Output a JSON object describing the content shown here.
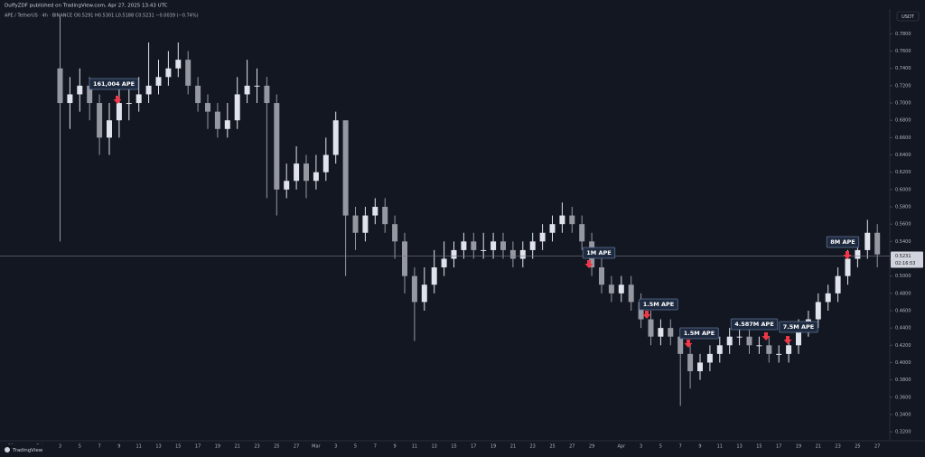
{
  "chart_data": {
    "type": "candlestick",
    "title": "DuffyZDF published on TradingView.com, Apr 27, 2025 13:43 UTC",
    "subtitle": "APE / TetherUS · 4h · BINANCE",
    "ohlc_text": "O0.5291 H0.5301 L0.5188 C0.5231 −0.0039 (−0.74%)",
    "currency": "USDT",
    "last_price": 0.5231,
    "countdown": "02:16:53",
    "watermark": "TradingView",
    "up_color": "#e0e3eb",
    "down_color": "#9598a1",
    "grid": false,
    "categories": [
      "29",
      null,
      null,
      "Feb",
      null,
      "3",
      null,
      "5",
      null,
      "7",
      null,
      "9",
      null,
      "11",
      null,
      "13",
      null,
      "15",
      null,
      "17",
      null,
      "19",
      null,
      "21",
      null,
      "23",
      null,
      "25",
      null,
      "27",
      null,
      "Mar",
      null,
      "3",
      null,
      "5",
      null,
      "7",
      null,
      "9",
      null,
      "11",
      null,
      "13",
      null,
      "15",
      null,
      "17",
      null,
      "19",
      null,
      "21",
      null,
      "23",
      null,
      "25",
      null,
      "27",
      null,
      "29",
      null,
      null,
      "Apr",
      null,
      "3",
      null,
      "5",
      null,
      "7",
      null,
      "9",
      null,
      "11",
      null,
      "13",
      null,
      "15",
      null,
      "17",
      null,
      "19",
      null,
      "21",
      null,
      "23",
      null,
      "25",
      null,
      "27"
    ],
    "open": [
      null,
      null,
      null,
      null,
      null,
      0.74,
      0.7,
      0.71,
      0.72,
      0.7,
      0.66,
      0.68,
      0.7,
      0.7,
      0.71,
      0.72,
      0.73,
      0.74,
      0.75,
      0.72,
      0.7,
      0.69,
      0.67,
      0.68,
      0.71,
      0.72,
      0.72,
      0.7,
      0.6,
      0.61,
      0.63,
      0.61,
      0.62,
      0.64,
      0.68,
      0.57,
      0.55,
      0.57,
      0.58,
      0.56,
      0.54,
      0.5,
      0.47,
      0.49,
      0.51,
      0.52,
      0.53,
      0.54,
      0.53,
      0.53,
      0.54,
      0.53,
      0.52,
      0.53,
      0.54,
      0.55,
      0.56,
      0.57,
      0.56,
      0.54,
      0.51,
      0.49,
      0.48,
      0.49,
      0.47,
      0.45,
      0.43,
      0.44,
      0.43,
      0.41,
      0.39,
      0.4,
      0.41,
      0.42,
      0.43,
      0.43,
      0.42,
      0.42,
      0.41,
      0.41,
      0.42,
      0.44,
      0.45,
      0.47,
      0.48,
      0.5,
      0.52,
      0.53,
      0.55
    ],
    "high": [
      null,
      null,
      null,
      null,
      null,
      0.8,
      0.73,
      0.74,
      0.73,
      0.71,
      0.7,
      0.72,
      0.72,
      0.73,
      0.77,
      0.75,
      0.76,
      0.77,
      0.76,
      0.73,
      0.71,
      0.7,
      0.7,
      0.73,
      0.75,
      0.74,
      0.73,
      0.71,
      0.63,
      0.65,
      0.64,
      0.64,
      0.66,
      0.69,
      0.68,
      0.58,
      0.58,
      0.59,
      0.59,
      0.57,
      0.55,
      0.51,
      0.51,
      0.53,
      0.54,
      0.54,
      0.55,
      0.55,
      0.55,
      0.55,
      0.55,
      0.54,
      0.54,
      0.55,
      0.56,
      0.57,
      0.585,
      0.58,
      0.57,
      0.55,
      0.52,
      0.5,
      0.5,
      0.5,
      0.48,
      0.46,
      0.45,
      0.45,
      0.44,
      0.42,
      0.41,
      0.42,
      0.43,
      0.44,
      0.44,
      0.44,
      0.43,
      0.43,
      0.42,
      0.43,
      0.45,
      0.46,
      0.48,
      0.49,
      0.51,
      0.53,
      0.54,
      0.565,
      0.56
    ],
    "low": [
      null,
      null,
      null,
      null,
      null,
      0.54,
      0.67,
      0.69,
      0.68,
      0.64,
      0.64,
      0.66,
      0.68,
      0.69,
      0.7,
      0.71,
      0.72,
      0.73,
      0.71,
      0.69,
      0.67,
      0.66,
      0.66,
      0.67,
      0.7,
      0.7,
      0.59,
      0.57,
      0.59,
      0.6,
      0.59,
      0.6,
      0.61,
      0.63,
      0.5,
      0.53,
      0.54,
      0.56,
      0.55,
      0.52,
      0.48,
      0.425,
      0.46,
      0.48,
      0.5,
      0.51,
      0.52,
      0.52,
      0.52,
      0.52,
      0.52,
      0.51,
      0.51,
      0.52,
      0.53,
      0.54,
      0.55,
      0.55,
      0.53,
      0.5,
      0.48,
      0.47,
      0.47,
      0.46,
      0.44,
      0.42,
      0.42,
      0.42,
      0.35,
      0.37,
      0.38,
      0.39,
      0.4,
      0.41,
      0.42,
      0.41,
      0.41,
      0.4,
      0.4,
      0.4,
      0.41,
      0.43,
      0.44,
      0.46,
      0.47,
      0.49,
      0.51,
      0.52,
      0.51
    ],
    "close": [
      null,
      null,
      null,
      null,
      null,
      0.7,
      0.71,
      0.72,
      0.7,
      0.66,
      0.68,
      0.7,
      0.7,
      0.71,
      0.72,
      0.73,
      0.74,
      0.75,
      0.72,
      0.7,
      0.69,
      0.67,
      0.68,
      0.71,
      0.72,
      0.72,
      0.7,
      0.6,
      0.61,
      0.63,
      0.61,
      0.62,
      0.64,
      0.68,
      0.57,
      0.55,
      0.57,
      0.58,
      0.56,
      0.54,
      0.5,
      0.47,
      0.49,
      0.51,
      0.52,
      0.53,
      0.54,
      0.53,
      0.53,
      0.54,
      0.53,
      0.52,
      0.53,
      0.54,
      0.55,
      0.56,
      0.57,
      0.56,
      0.54,
      0.51,
      0.49,
      0.48,
      0.49,
      0.47,
      0.45,
      0.43,
      0.44,
      0.43,
      0.41,
      0.39,
      0.4,
      0.41,
      0.42,
      0.43,
      0.43,
      0.42,
      0.42,
      0.41,
      0.41,
      0.42,
      0.44,
      0.45,
      0.47,
      0.48,
      0.5,
      0.52,
      0.53,
      0.55,
      0.525
    ],
    "ylim": [
      0.3128,
      0.8086
    ],
    "yticks": [
      {
        "value": 0.32,
        "label": "0.3200"
      },
      {
        "value": 0.34,
        "label": "0.3400"
      },
      {
        "value": 0.36,
        "label": "0.3600"
      },
      {
        "value": 0.38,
        "label": "0.3800"
      },
      {
        "value": 0.4,
        "label": "0.4000"
      },
      {
        "value": 0.42,
        "label": "0.4200"
      },
      {
        "value": 0.44,
        "label": "0.4400"
      },
      {
        "value": 0.46,
        "label": "0.4600"
      },
      {
        "value": 0.48,
        "label": "0.4800"
      },
      {
        "value": 0.5,
        "label": "0.5000"
      },
      {
        "value": 0.52,
        "label": "0.5200"
      },
      {
        "value": 0.54,
        "label": "0.5400"
      },
      {
        "value": 0.56,
        "label": "0.5600"
      },
      {
        "value": 0.58,
        "label": "0.5800"
      },
      {
        "value": 0.6,
        "label": "0.6000"
      },
      {
        "value": 0.62,
        "label": "0.6200"
      },
      {
        "value": 0.64,
        "label": "0.6400"
      },
      {
        "value": 0.66,
        "label": "0.6600"
      },
      {
        "value": 0.68,
        "label": "0.6800"
      },
      {
        "value": 0.7,
        "label": "0.7000"
      },
      {
        "value": 0.72,
        "label": "0.7200"
      },
      {
        "value": 0.74,
        "label": "0.7400"
      },
      {
        "value": 0.76,
        "label": "0.7600"
      },
      {
        "value": 0.78,
        "label": "0.7800"
      }
    ],
    "annotations": [
      "161,004 APE",
      "1M APE",
      "1.5M APE",
      "1.5M APE",
      "4.587M APE",
      "7.5M APE",
      "8M APE"
    ]
  }
}
